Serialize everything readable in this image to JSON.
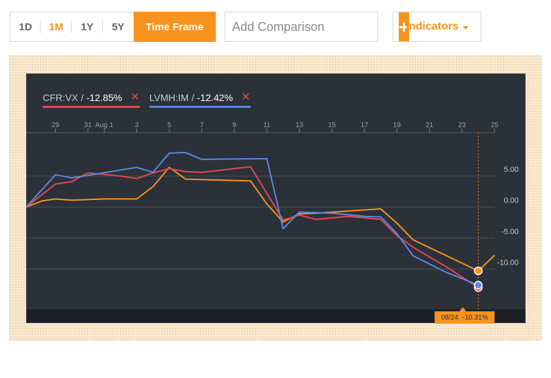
{
  "toolbar": {
    "ranges": [
      {
        "label": "1D",
        "active": false
      },
      {
        "label": "1M",
        "active": true
      },
      {
        "label": "1Y",
        "active": false
      },
      {
        "label": "5Y",
        "active": false
      }
    ],
    "time_frame_label": "Time Frame",
    "comparison_placeholder": "Add Comparison",
    "add_symbol": "+",
    "indicators_label": "Indicators"
  },
  "legend": [
    {
      "ticker": "CFR:VX",
      "sep": "/",
      "change": "-12.85%",
      "color": "#e8474e",
      "remove": "✕"
    },
    {
      "ticker": "LVMH:IM",
      "sep": "/",
      "change": "-12.42%",
      "color": "#5f86e6",
      "remove": "✕"
    }
  ],
  "crosshair": {
    "date": "08/24",
    "value": "-10.31%"
  },
  "colors": {
    "accent": "#f7931d",
    "background": "#2b3139",
    "cfr": "#e8474e",
    "lvmh": "#5f86e6",
    "series3": "#f7931d"
  },
  "chart_data": {
    "type": "line",
    "x_tick_labels": [
      "29",
      "31",
      "Aug 1",
      "3",
      "5",
      "7",
      "9",
      "11",
      "13",
      "15",
      "17",
      "19",
      "21",
      "23",
      "25"
    ],
    "x_tick_days": [
      29,
      31,
      32,
      34,
      36,
      38,
      40,
      42,
      44,
      46,
      48,
      50,
      52,
      54,
      56
    ],
    "x_range_days": [
      27.2,
      56.0
    ],
    "y_tick_labels": [
      "5.00",
      "0.00",
      "-5.00",
      "-10.00"
    ],
    "y_ticks": [
      5,
      0,
      -5,
      -10
    ],
    "ylim": [
      -16.5,
      12.0
    ],
    "grid": true,
    "legend_position": "top-left",
    "crosshair_day": 55,
    "series": [
      {
        "name": "CFR:VX",
        "color": "#e8474e",
        "x": [
          27.2,
          29,
          30,
          31,
          33,
          34,
          35,
          36,
          37,
          38,
          41,
          43,
          44,
          45,
          47,
          49,
          50,
          51,
          53,
          55
        ],
        "values": [
          0,
          3.7,
          4.1,
          5.5,
          5.0,
          4.6,
          5.5,
          6.2,
          5.7,
          5.6,
          6.5,
          -2.1,
          -1.3,
          -2.0,
          -1.5,
          -2.0,
          -4.6,
          -6.5,
          -9.6,
          -13.0
        ]
      },
      {
        "name": "LVMH:IM",
        "color": "#5f86e6",
        "x": [
          27.2,
          29,
          30,
          31,
          34,
          35,
          36,
          37,
          38,
          42,
          43,
          44,
          46,
          48,
          49,
          50,
          51,
          53,
          55
        ],
        "values": [
          0,
          5.2,
          4.7,
          5.1,
          6.4,
          5.6,
          8.7,
          8.8,
          7.7,
          7.8,
          -3.5,
          -0.8,
          -1.0,
          -1.5,
          -1.6,
          -4.3,
          -7.9,
          -10.5,
          -12.6
        ]
      },
      {
        "x": [
          27.2,
          28.2,
          29,
          30,
          32,
          34,
          35,
          36,
          37,
          41,
          42,
          43,
          44,
          45,
          49,
          50,
          51,
          55,
          56
        ],
        "color": "#f7931d",
        "values": [
          0,
          1.0,
          1.3,
          1.1,
          1.3,
          1.3,
          3.3,
          6.4,
          4.5,
          4.2,
          0.5,
          -2.4,
          -1.1,
          -1.0,
          -0.3,
          -2.6,
          -5.3,
          -10.3,
          -7.8
        ]
      }
    ]
  }
}
